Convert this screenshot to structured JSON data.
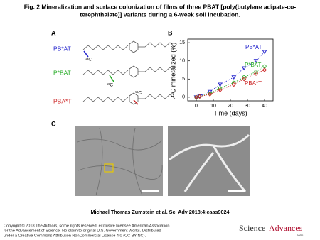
{
  "header": {
    "title_lines": [
      "Fig. 2 Mineralization and surface colonization of films of three PBAT [poly(butylene adipate-co-",
      "terephthalate)] variants during a 6-week soil incubation."
    ]
  },
  "panel_a": {
    "label": "A",
    "variants": [
      {
        "name": "PB*AT",
        "isotope": "¹³C"
      },
      {
        "name": "P*BAT",
        "isotope": "¹³C"
      },
      {
        "name": "PBA*T",
        "isotope": "¹³C"
      }
    ]
  },
  "panel_b": {
    "label": "B"
  },
  "chart_data": {
    "type": "line",
    "xlabel": "Time (days)",
    "ylabel": "¹³C mineralized (%)",
    "x": [
      0,
      2,
      8,
      14,
      22,
      28,
      35,
      40
    ],
    "xlim": [
      -5,
      45
    ],
    "xticks": [
      0,
      10,
      20,
      30,
      40
    ],
    "ylim": [
      -1,
      16
    ],
    "yticks": [
      0,
      5,
      10,
      15
    ],
    "series": [
      {
        "name": "PB*AT",
        "color": "#2222cc",
        "marker": "triangle-down",
        "values": [
          0,
          0.3,
          1.5,
          3.5,
          5.5,
          8,
          10,
          12.5
        ]
      },
      {
        "name": "P*BAT",
        "color": "#22aa22",
        "marker": "circle",
        "values": [
          0,
          0.2,
          1,
          2.5,
          4,
          5.5,
          7,
          8.5
        ]
      },
      {
        "name": "PBA*T",
        "color": "#cc2222",
        "marker": "diamond",
        "values": [
          0,
          0.2,
          0.8,
          2,
          3.5,
          5,
          6.5,
          7.5
        ]
      }
    ]
  },
  "panel_c": {
    "label": "C"
  },
  "footer": {
    "citation": "Michael Thomas Zumstein et al. Sci Adv 2018;4:eaas9024",
    "copyright": [
      "Copyright © 2018 The Authors, some rights reserved; exclusive licensee American Association",
      "for the Advancement of Science. No claim to original U.S. Government Works. Distributed",
      "under a Creative Commons Attribution NonCommercial License 4.0 (CC BY-NC)."
    ],
    "logo_science": "Science",
    "logo_advances": "Advances",
    "logo_aaas": "AAAS"
  }
}
